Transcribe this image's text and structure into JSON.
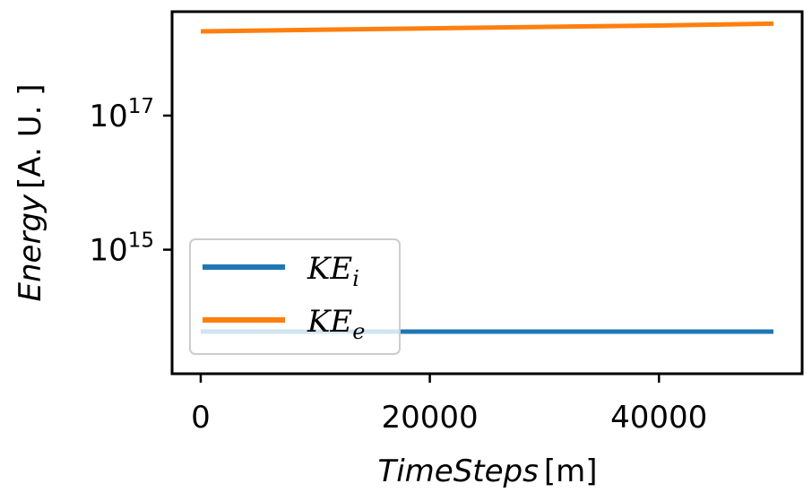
{
  "chart_data": {
    "type": "line",
    "xlabel_italic": "TimeSteps",
    "xlabel_unit": "[m]",
    "ylabel_italic": "Energy",
    "ylabel_unit": "[A. U. ]",
    "yscale": "log",
    "xlim": [
      -2500,
      52500
    ],
    "ylim_log10": [
      13.15,
      18.55
    ],
    "x_ticks": [
      0,
      20000,
      40000
    ],
    "x_tick_labels": [
      "0",
      "20000",
      "40000"
    ],
    "y_ticks": [
      {
        "value": 1000000000000000.0,
        "base": "10",
        "exp": "15"
      },
      {
        "value": 1e+17,
        "base": "10",
        "exp": "17"
      }
    ],
    "series": [
      {
        "name": "KE_i",
        "legend_base": "KE",
        "legend_sub": "i",
        "color": "#1f77b4",
        "x": [
          0,
          10000,
          20000,
          30000,
          40000,
          50000
        ],
        "y": [
          60000000000000.0,
          60000000000000.0,
          60000000000000.0,
          60000000000000.0,
          60000000000000.0,
          60000000000000.0
        ]
      },
      {
        "name": "KE_e",
        "legend_base": "KE",
        "legend_sub": "e",
        "color": "#ff7f0e",
        "x": [
          0,
          10000,
          20000,
          30000,
          40000,
          50000
        ],
        "y": [
          1.8e+18,
          1.9e+18,
          2e+18,
          2.1e+18,
          2.2e+18,
          2.35e+18
        ]
      }
    ],
    "legend_position": "lower-left",
    "grid": false
  }
}
